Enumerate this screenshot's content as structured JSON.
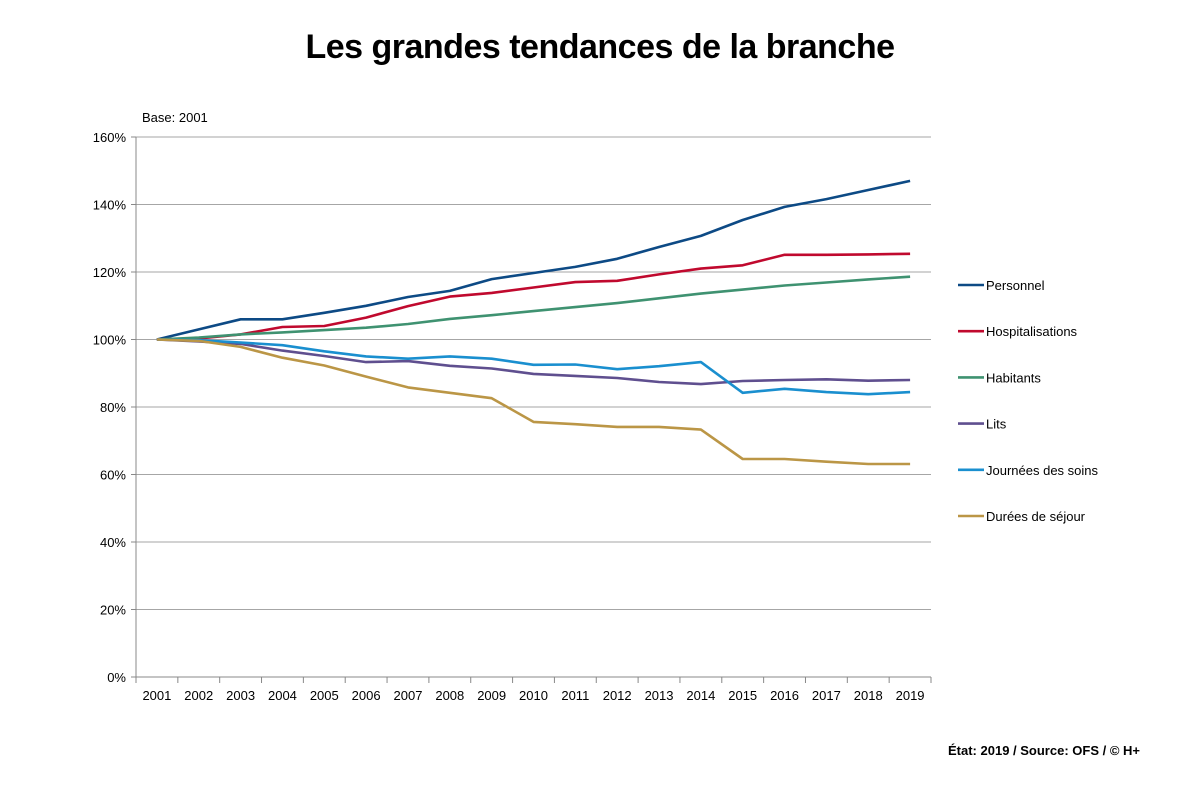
{
  "chart_data": {
    "type": "line",
    "title": "Les grandes tendances de la branche",
    "subtitle": "Base: 2001",
    "footer": "État: 2019 / Source: OFS / © H+",
    "xlabel": "",
    "ylabel": "",
    "ylim": [
      0,
      160
    ],
    "yticks": [
      "0%",
      "20%",
      "40%",
      "60%",
      "80%",
      "100%",
      "120%",
      "140%",
      "160%"
    ],
    "grid": true,
    "legend_position": "right",
    "x": [
      "2001",
      "2002",
      "2003",
      "2004",
      "2005",
      "2006",
      "2007",
      "2008",
      "2009",
      "2010",
      "2011",
      "2012",
      "2013",
      "2014",
      "2015",
      "2016",
      "2017",
      "2018",
      "2019"
    ],
    "series": [
      {
        "name": "Personnel",
        "color": "#0d4a85",
        "values": [
          100,
          103,
          106,
          106,
          107.9,
          110,
          112.6,
          114.4,
          117.9,
          119.7,
          121.5,
          123.9,
          127.4,
          130.7,
          135.4,
          139.3,
          141.6,
          144.3,
          147
        ]
      },
      {
        "name": "Hospitalisations",
        "color": "#c0092e",
        "values": [
          100,
          100.3,
          101.5,
          103.7,
          104,
          106.5,
          109.9,
          112.7,
          113.8,
          115.4,
          117,
          117.4,
          119.3,
          121,
          122,
          125.1,
          125.1,
          125.2,
          125.4
        ]
      },
      {
        "name": "Habitants",
        "color": "#3f9271",
        "values": [
          100,
          100.6,
          101.5,
          102.1,
          102.8,
          103.5,
          104.6,
          106.1,
          107.2,
          108.4,
          109.6,
          110.8,
          112.2,
          113.6,
          114.8,
          116,
          116.9,
          117.8,
          118.6
        ]
      },
      {
        "name": "Lits",
        "color": "#5f4f8f",
        "values": [
          100,
          99.4,
          98.7,
          96.7,
          95.1,
          93.3,
          93.6,
          92.2,
          91.4,
          89.8,
          89.2,
          88.6,
          87.4,
          86.8,
          87.7,
          88,
          88.2,
          87.8,
          88
        ]
      },
      {
        "name": "Journées des soins",
        "color": "#1a8fcf",
        "values": [
          100,
          99.8,
          99.1,
          98.3,
          96.5,
          95,
          94.3,
          95,
          94.3,
          92.5,
          92.6,
          91.2,
          92.1,
          93.3,
          84.2,
          85.4,
          84.4,
          83.8,
          84.4
        ]
      },
      {
        "name": "Durées de séjour",
        "color": "#bb9646",
        "values": [
          100,
          99.6,
          97.8,
          94.6,
          92.3,
          89,
          85.8,
          84.2,
          82.6,
          75.6,
          74.9,
          74.1,
          74.1,
          73.3,
          64.6,
          64.6,
          63.8,
          63.1,
          63.1
        ]
      }
    ]
  }
}
